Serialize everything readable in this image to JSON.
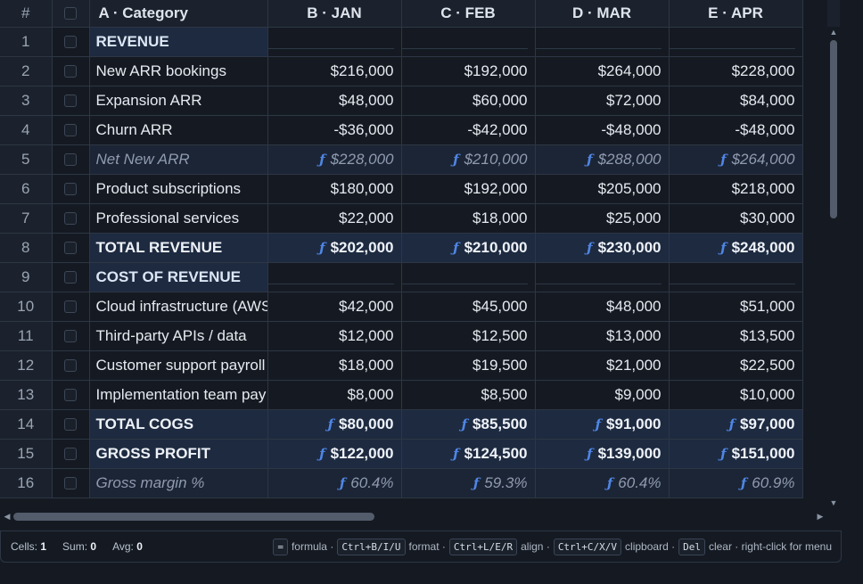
{
  "headers": {
    "row_num": "#",
    "col_a": "A · Category",
    "months": [
      "B · JAN",
      "C · FEB",
      "D · MAR",
      "E · APR"
    ]
  },
  "rows": [
    {
      "n": "1",
      "label": "REVENUE",
      "kind": "section",
      "values": [
        "",
        "",
        "",
        ""
      ]
    },
    {
      "n": "2",
      "label": "New ARR bookings",
      "kind": "normal",
      "values": [
        "$216,000",
        "$192,000",
        "$264,000",
        "$228,000"
      ]
    },
    {
      "n": "3",
      "label": "Expansion ARR",
      "kind": "normal",
      "values": [
        "$48,000",
        "$60,000",
        "$72,000",
        "$84,000"
      ]
    },
    {
      "n": "4",
      "label": "Churn ARR",
      "kind": "normal",
      "values": [
        "-$36,000",
        "-$42,000",
        "-$48,000",
        "-$48,000"
      ]
    },
    {
      "n": "5",
      "label": "Net New ARR",
      "kind": "formula",
      "values": [
        "$228,000",
        "$210,000",
        "$288,000",
        "$264,000"
      ]
    },
    {
      "n": "6",
      "label": "Product subscriptions",
      "kind": "normal",
      "values": [
        "$180,000",
        "$192,000",
        "$205,000",
        "$218,000"
      ]
    },
    {
      "n": "7",
      "label": "Professional services",
      "kind": "normal",
      "values": [
        "$22,000",
        "$18,000",
        "$25,000",
        "$30,000"
      ]
    },
    {
      "n": "8",
      "label": "TOTAL REVENUE",
      "kind": "total",
      "values": [
        "$202,000",
        "$210,000",
        "$230,000",
        "$248,000"
      ]
    },
    {
      "n": "9",
      "label": "COST OF REVENUE",
      "kind": "section",
      "values": [
        "",
        "",
        "",
        ""
      ]
    },
    {
      "n": "10",
      "label": "Cloud infrastructure (AWS",
      "kind": "normal",
      "values": [
        "$42,000",
        "$45,000",
        "$48,000",
        "$51,000"
      ]
    },
    {
      "n": "11",
      "label": "Third-party APIs / data",
      "kind": "normal",
      "values": [
        "$12,000",
        "$12,500",
        "$13,000",
        "$13,500"
      ]
    },
    {
      "n": "12",
      "label": "Customer support payroll",
      "kind": "normal",
      "values": [
        "$18,000",
        "$19,500",
        "$21,000",
        "$22,500"
      ]
    },
    {
      "n": "13",
      "label": "Implementation team pay",
      "kind": "normal",
      "values": [
        "$8,000",
        "$8,500",
        "$9,000",
        "$10,000"
      ]
    },
    {
      "n": "14",
      "label": "TOTAL COGS",
      "kind": "total",
      "values": [
        "$80,000",
        "$85,500",
        "$91,000",
        "$97,000"
      ]
    },
    {
      "n": "15",
      "label": "GROSS PROFIT",
      "kind": "total",
      "values": [
        "$122,000",
        "$124,500",
        "$139,000",
        "$151,000"
      ]
    },
    {
      "n": "16",
      "label": "Gross margin %",
      "kind": "formula",
      "values": [
        "60.4%",
        "59.3%",
        "60.4%",
        "60.9%"
      ]
    }
  ],
  "formula_glyph": "ƒ",
  "status": {
    "cells_label": "Cells:",
    "cells_value": "1",
    "sum_label": "Sum:",
    "sum_value": "0",
    "avg_label": "Avg:",
    "avg_value": "0"
  },
  "hints": [
    {
      "key": "=",
      "text": "formula ·"
    },
    {
      "key": "Ctrl+B/I/U",
      "text": "format ·"
    },
    {
      "key": "Ctrl+L/E/R",
      "text": "align ·"
    },
    {
      "key": "Ctrl+C/X/V",
      "text": "clipboard ·"
    },
    {
      "key": "Del",
      "text": "clear · right-click for menu"
    }
  ],
  "icons": {
    "scroll_up": "chevron-up-icon",
    "scroll_down": "chevron-down-icon",
    "scroll_left": "chevron-left-icon",
    "scroll_right": "chevron-right-icon",
    "formula": "function-icon"
  },
  "colors": {
    "background": "#151a22",
    "section_fill": "#1d2a40",
    "formula_fill": "#1c2535",
    "formula_glyph": "#4f86e6"
  }
}
